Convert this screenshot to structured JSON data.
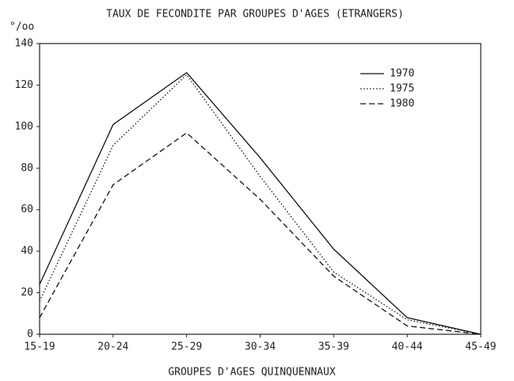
{
  "chart_data": {
    "type": "line",
    "title": "TAUX DE FECONDITE PAR GROUPES D'AGES  (ETRANGERS)",
    "y_label": "°/oo",
    "x_label": "GROUPES D'AGES QUINQUENNAUX",
    "categories": [
      "15-19",
      "20-24",
      "25-29",
      "30-34",
      "35-39",
      "40-44",
      "45-49"
    ],
    "series": [
      {
        "name": "1970",
        "color": "#111111",
        "dash": "solid",
        "values": [
          24,
          101,
          126,
          85,
          41,
          8,
          0
        ]
      },
      {
        "name": "1975",
        "color": "#111111",
        "dash": "dotted",
        "values": [
          16,
          91,
          125,
          76,
          30,
          7,
          0
        ]
      },
      {
        "name": "1980",
        "color": "#111111",
        "dash": "dashed",
        "values": [
          8,
          72,
          97,
          65,
          28,
          4,
          0
        ]
      }
    ],
    "ylim": [
      0,
      140
    ],
    "yticks": [
      0,
      20,
      40,
      60,
      80,
      100,
      120,
      140
    ],
    "grid": false,
    "legend": "top-right"
  }
}
